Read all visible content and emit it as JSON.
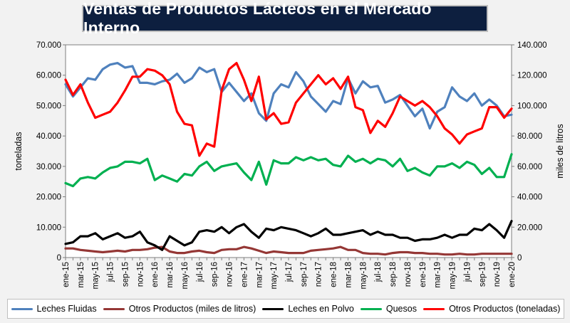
{
  "title": "Ventas de Productos Lácteos en el Mercado Interno",
  "chart_data": {
    "type": "line",
    "title": "Ventas de Productos Lácteos en el Mercado Interno",
    "ylabel_left": "toneladas",
    "ylabel_right": "miles de litros",
    "ylim_left": [
      0,
      70000
    ],
    "ylim_right": [
      0,
      140000
    ],
    "yticks_left": [
      "0",
      "10.000",
      "20.000",
      "30.000",
      "40.000",
      "50.000",
      "60.000",
      "70.000"
    ],
    "yticks_right": [
      "0",
      "20.000",
      "40.000",
      "60.000",
      "80.000",
      "100.000",
      "120.000",
      "140.000"
    ],
    "grid": false,
    "legend_position": "bottom",
    "x": [
      "ene-15",
      "feb-15",
      "mar-15",
      "abr-15",
      "may-15",
      "jun-15",
      "jul-15",
      "ago-15",
      "sep-15",
      "oct-15",
      "nov-15",
      "dic-15",
      "ene-16",
      "feb-16",
      "mar-16",
      "abr-16",
      "may-16",
      "jun-16",
      "jul-16",
      "ago-16",
      "sep-16",
      "oct-16",
      "nov-16",
      "dic-16",
      "ene-17",
      "feb-17",
      "mar-17",
      "abr-17",
      "may-17",
      "jun-17",
      "jul-17",
      "ago-17",
      "sep-17",
      "oct-17",
      "nov-17",
      "dic-17",
      "ene-18",
      "feb-18",
      "mar-18",
      "abr-18",
      "may-18",
      "jun-18",
      "jul-18",
      "ago-18",
      "sep-18",
      "oct-18",
      "nov-18",
      "dic-18",
      "ene-19",
      "feb-19",
      "mar-19",
      "abr-19",
      "may-19",
      "jun-19",
      "jul-19",
      "ago-19",
      "sep-19",
      "oct-19",
      "nov-19",
      "dic-19",
      "ene-20"
    ],
    "x_tick_labels": [
      "ene-15",
      "mar-15",
      "may-15",
      "jul-15",
      "sep-15",
      "nov-15",
      "ene-16",
      "mar-16",
      "may-16",
      "jul-16",
      "sep-16",
      "nov-16",
      "ene-17",
      "mar-17",
      "may-17",
      "jul-17",
      "sep-17",
      "nov-17",
      "ene-18",
      "mar-18",
      "may-18",
      "jul-18",
      "sep-18",
      "nov-18",
      "ene-19",
      "mar-19",
      "may-19",
      "jul-19",
      "sep-19",
      "nov-19",
      "ene-20"
    ],
    "series": [
      {
        "name": "Leches Fluidas",
        "axis": "right",
        "color": "#4f81bd",
        "values": [
          114000,
          106000,
          112000,
          118000,
          117000,
          124000,
          127000,
          128000,
          125000,
          126000,
          115000,
          115000,
          114000,
          116000,
          117000,
          121000,
          115000,
          118000,
          125000,
          122000,
          124000,
          109000,
          115000,
          109000,
          103000,
          108000,
          95000,
          90000,
          108000,
          114000,
          112000,
          122000,
          116000,
          106000,
          101000,
          96000,
          103000,
          101000,
          118000,
          108000,
          116000,
          112000,
          113000,
          102000,
          104000,
          107000,
          100000,
          93000,
          98000,
          85000,
          96000,
          99000,
          112000,
          106000,
          103000,
          108000,
          100000,
          104000,
          100000,
          93000,
          94000
        ]
      },
      {
        "name": "Otros Productos (miles de litros)",
        "axis": "right",
        "color": "#953735",
        "values": [
          6000,
          6000,
          5000,
          4500,
          4000,
          3500,
          4000,
          4500,
          4000,
          5000,
          5000,
          5500,
          6500,
          7000,
          4000,
          3000,
          3000,
          4000,
          4500,
          3500,
          3000,
          5000,
          5500,
          5500,
          7000,
          6000,
          4500,
          3000,
          4000,
          3500,
          3000,
          3000,
          3000,
          4500,
          5000,
          5500,
          6000,
          7000,
          5000,
          5000,
          3000,
          2500,
          2500,
          2000,
          3000,
          3500,
          3500,
          3000,
          3000,
          2500,
          2500,
          2000,
          2000,
          2500,
          2000,
          2000,
          2500,
          2500,
          2500,
          2500,
          2500
        ]
      },
      {
        "name": "Leches en Polvo",
        "axis": "left",
        "color": "#000000",
        "values": [
          4500,
          5000,
          7000,
          7000,
          8000,
          6000,
          7000,
          8000,
          6500,
          7000,
          8500,
          5000,
          4000,
          2500,
          7000,
          5500,
          4000,
          5000,
          8500,
          9000,
          8500,
          10000,
          8000,
          10000,
          11000,
          8500,
          6500,
          9500,
          9000,
          10000,
          9500,
          9000,
          8000,
          7000,
          8000,
          9500,
          7500,
          7500,
          8000,
          8500,
          9000,
          7500,
          8500,
          7500,
          7500,
          6500,
          6500,
          5500,
          6000,
          6000,
          6500,
          7500,
          6500,
          7500,
          7500,
          9500,
          9000,
          11000,
          9000,
          6500,
          12000
        ]
      },
      {
        "name": "Quesos",
        "axis": "left",
        "color": "#00b050",
        "values": [
          24500,
          23500,
          26000,
          26500,
          26000,
          28000,
          29500,
          30000,
          31500,
          31500,
          31000,
          32500,
          25500,
          27000,
          26000,
          25000,
          27500,
          27000,
          30000,
          31500,
          28500,
          30000,
          30500,
          31000,
          28000,
          25500,
          31500,
          24000,
          32000,
          31000,
          31000,
          33000,
          32000,
          33000,
          32000,
          32500,
          30500,
          30000,
          33500,
          31500,
          32500,
          31000,
          32500,
          32000,
          30000,
          32500,
          28500,
          29500,
          28000,
          27000,
          30000,
          30000,
          31000,
          29500,
          31500,
          30500,
          27500,
          29500,
          26500,
          26500,
          34000
        ]
      },
      {
        "name": "Otros Productos (toneladas)",
        "axis": "left",
        "color": "#ff0000",
        "values": [
          58500,
          53500,
          57000,
          51000,
          46000,
          47000,
          48000,
          51000,
          55000,
          59500,
          59500,
          62000,
          61500,
          60000,
          57000,
          48000,
          44000,
          43500,
          33500,
          37500,
          36500,
          55000,
          62000,
          64000,
          58500,
          51500,
          59500,
          45500,
          47500,
          44000,
          44500,
          51000,
          54000,
          57000,
          60000,
          57000,
          59000,
          55500,
          59500,
          49500,
          48500,
          41000,
          45000,
          43000,
          47500,
          53000,
          51500,
          50000,
          51500,
          49500,
          46500,
          42500,
          40500,
          37500,
          40500,
          41500,
          42500,
          49500,
          49500,
          46000,
          49000
        ]
      }
    ]
  },
  "legend": {
    "leches_fluidas": "Leches Fluidas",
    "otros_litros": "Otros Productos (miles de litros)",
    "leches_polvo": "Leches en Polvo",
    "quesos": "Quesos",
    "otros_toneladas": "Otros Productos (toneladas)"
  }
}
